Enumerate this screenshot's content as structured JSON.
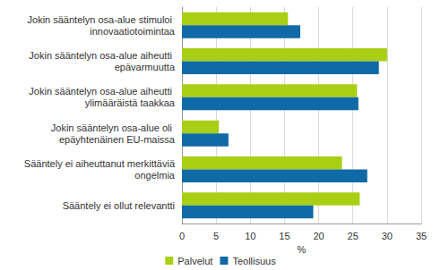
{
  "chart_data": {
    "type": "bar",
    "orientation": "horizontal",
    "categories": [
      "Jokin sääntelyn osa-alue stimuloi innovaatiotoimintaa",
      "Jokin sääntelyn osa-alue aiheutti epävarmuutta",
      "Jokin sääntelyn osa-alue aiheutti ylimääräistä taakkaa",
      "Jokin sääntelyn osa-alue oli epäyhtenäinen EU-maissa",
      "Sääntely ei aiheuttanut merkittäviä ongelmia",
      "Sääntely ei ollut relevantti"
    ],
    "series": [
      {
        "name": "Palvelut",
        "color": "#a8cf14",
        "values": [
          15.5,
          30.0,
          25.6,
          5.4,
          23.4,
          26.0
        ]
      },
      {
        "name": "Teollisuus",
        "color": "#0f6aa6",
        "values": [
          17.3,
          28.8,
          25.8,
          6.8,
          27.1,
          19.2
        ]
      }
    ],
    "xlabel": "%",
    "xlim": [
      0,
      35
    ],
    "xticks": [
      0,
      5,
      10,
      15,
      20,
      25,
      30,
      35
    ],
    "grid": true,
    "legend": "bottom"
  }
}
